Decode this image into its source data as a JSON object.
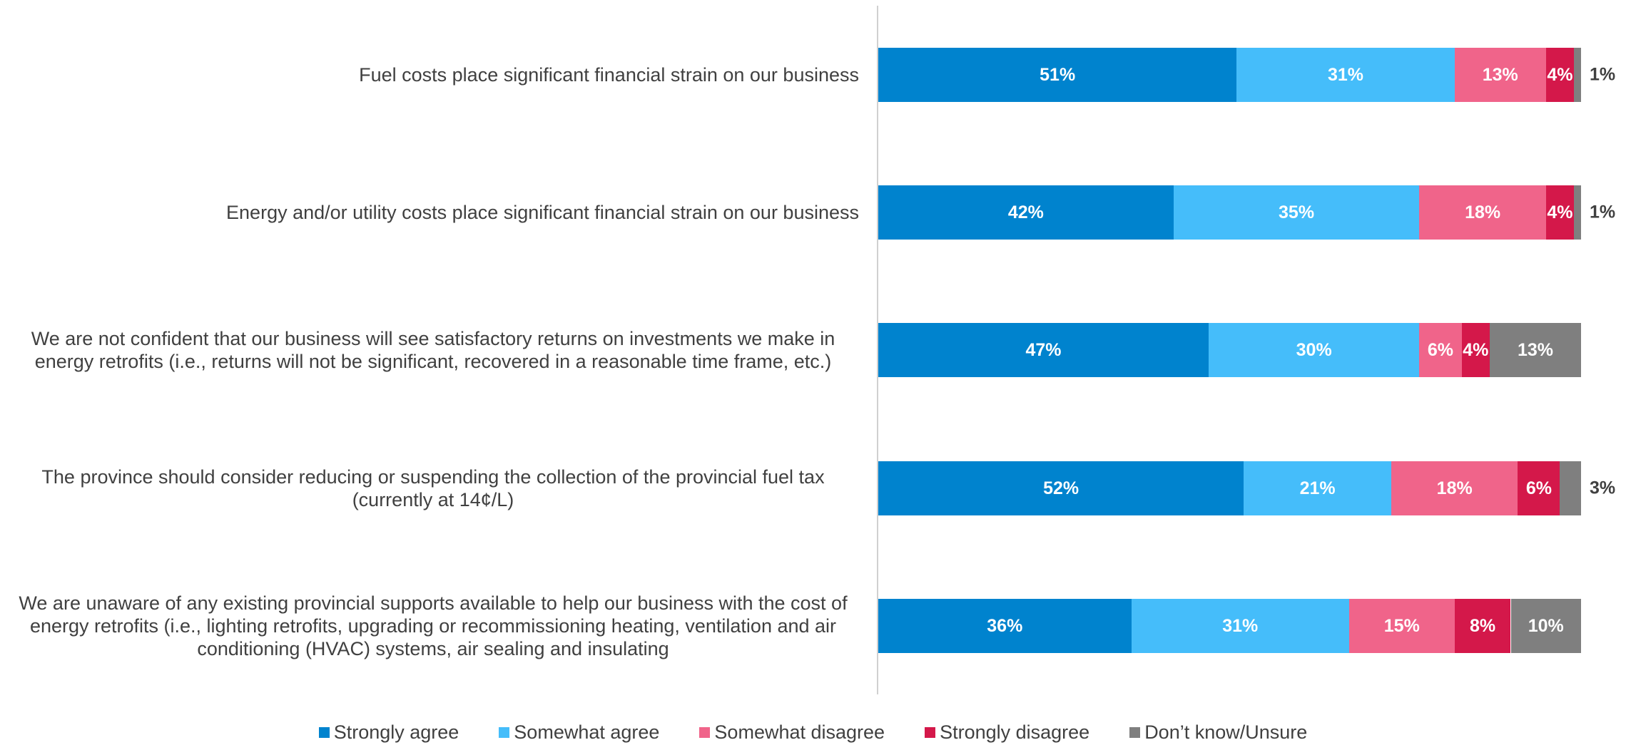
{
  "chart_data": {
    "type": "stacked-bar-horizontal",
    "categories": [
      "Fuel costs place significant financial strain on our business",
      "Energy and/or utility costs place significant financial strain on our business",
      "We are not confident that our business will see satisfactory returns on investments we make in energy retrofits (i.e., returns will not be significant, recovered in a reasonable time frame, etc.)",
      "The province should consider reducing or suspending the collection of the provincial fuel tax (currently at 14¢/L)",
      "We are unaware of any existing provincial supports available to help our business with the cost of energy retrofits (i.e., lighting retrofits, upgrading or recommissioning heating, ventilation and air conditioning (HVAC) systems, air sealing and insulating"
    ],
    "series": [
      {
        "name": "Strongly agree",
        "color": "#0083ce",
        "values": [
          51,
          42,
          47,
          52,
          36
        ],
        "value_labels": [
          "51%",
          "42%",
          "47%",
          "52%",
          "36%"
        ]
      },
      {
        "name": "Somewhat agree",
        "color": "#45bdfa",
        "values": [
          31,
          35,
          30,
          21,
          31
        ],
        "value_labels": [
          "31%",
          "35%",
          "30%",
          "21%",
          "31%"
        ]
      },
      {
        "name": "Somewhat disagree",
        "color": "#f0648a",
        "values": [
          13,
          18,
          6,
          18,
          15
        ],
        "value_labels": [
          "13%",
          "18%",
          "6%",
          "18%",
          "15%"
        ]
      },
      {
        "name": "Strongly disagree",
        "color": "#d4184a",
        "values": [
          4,
          4,
          4,
          6,
          8
        ],
        "value_labels": [
          "4%",
          "4%",
          "4%",
          "6%",
          "8%"
        ]
      },
      {
        "name": "Don’t know/Unsure",
        "color": "#7f7f7f",
        "values": [
          1,
          1,
          13,
          3,
          10
        ],
        "value_labels": [
          "1%",
          "1%",
          "13%",
          "3%",
          "10%"
        ]
      }
    ],
    "xlim": [
      0,
      100
    ],
    "legend": "bottom"
  }
}
